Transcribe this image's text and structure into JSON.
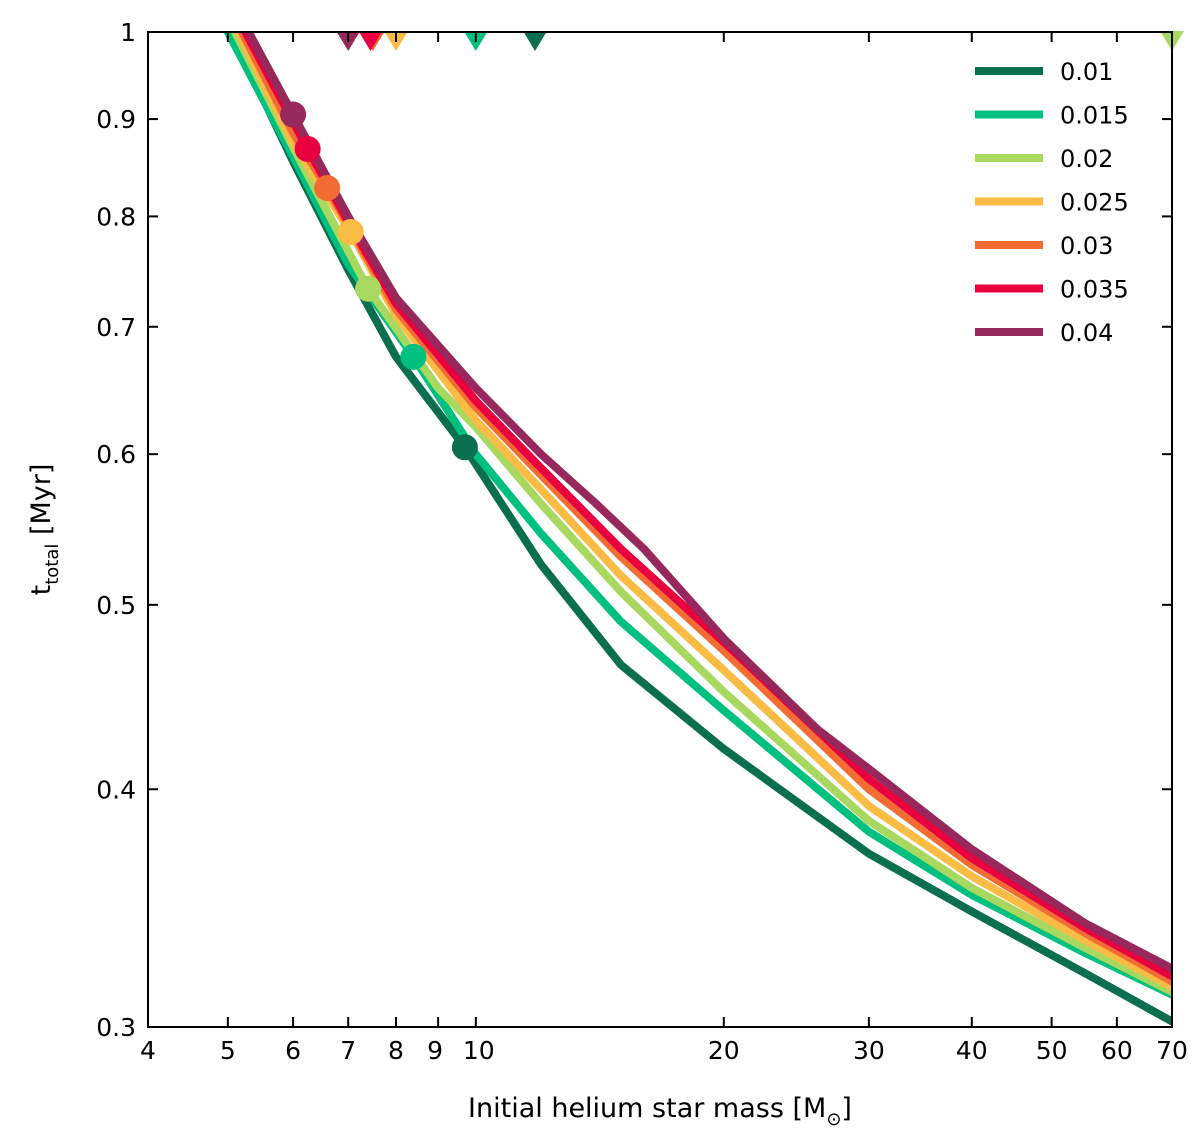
{
  "chart_data": {
    "type": "line",
    "xscale": "log",
    "yscale": "log",
    "xlim": [
      4,
      70
    ],
    "ylim": [
      0.3,
      1.0
    ],
    "xlabel": "Initial helium star mass [M",
    "xlabel_sub": "⊙",
    "xlabel_end": "]",
    "ylabel": "t",
    "ylabel_sub": "total",
    "ylabel_end": " [Myr]",
    "x_ticks": [
      {
        "value": 4,
        "label": "4"
      },
      {
        "value": 5,
        "label": "5"
      },
      {
        "value": 6,
        "label": "6"
      },
      {
        "value": 7,
        "label": "7"
      },
      {
        "value": 8,
        "label": "8"
      },
      {
        "value": 9,
        "label": "9"
      },
      {
        "value": 10,
        "label": "10"
      },
      {
        "value": 20,
        "label": "20"
      },
      {
        "value": 30,
        "label": "30"
      },
      {
        "value": 40,
        "label": "40"
      },
      {
        "value": 50,
        "label": "50"
      },
      {
        "value": 60,
        "label": "60"
      },
      {
        "value": 70,
        "label": "70"
      }
    ],
    "y_ticks": [
      {
        "value": 0.3,
        "label": "0.3"
      },
      {
        "value": 0.4,
        "label": "0.4"
      },
      {
        "value": 0.5,
        "label": "0.5"
      },
      {
        "value": 0.6,
        "label": "0.6"
      },
      {
        "value": 0.7,
        "label": "0.7"
      },
      {
        "value": 0.8,
        "label": "0.8"
      },
      {
        "value": 0.9,
        "label": "0.9"
      },
      {
        "value": 1.0,
        "label": "1"
      }
    ],
    "legend_position": "top-right",
    "series": [
      {
        "name": "0.01",
        "color": "#0b6e4f",
        "x": [
          5.05,
          6,
          7,
          8,
          9.7,
          12,
          15,
          20,
          30,
          40,
          55,
          70
        ],
        "y": [
          1.0,
          0.855,
          0.75,
          0.675,
          0.605,
          0.525,
          0.465,
          0.42,
          0.37,
          0.345,
          0.32,
          0.302
        ],
        "marker_circle": [
          9.7,
          0.605
        ],
        "marker_triangle_x": 11.8
      },
      {
        "name": "0.015",
        "color": "#00c07f",
        "x": [
          5.0,
          6,
          7,
          8.4,
          10,
          12,
          15,
          20,
          30,
          40,
          55,
          70
        ],
        "y": [
          1.0,
          0.86,
          0.755,
          0.675,
          0.6,
          0.545,
          0.49,
          0.44,
          0.38,
          0.352,
          0.328,
          0.312
        ],
        "marker_circle": [
          8.4,
          0.675
        ],
        "marker_triangle_x": 10.0
      },
      {
        "name": "0.02",
        "color": "#a8d860",
        "x": [
          5.1,
          6,
          7.4,
          9,
          10,
          12,
          15,
          20,
          30,
          40,
          55,
          70
        ],
        "y": [
          1.0,
          0.87,
          0.733,
          0.65,
          0.62,
          0.565,
          0.508,
          0.45,
          0.385,
          0.355,
          0.33,
          0.313
        ],
        "marker_circle": [
          7.4,
          0.733
        ],
        "marker_triangle_x": 70
      },
      {
        "name": "0.025",
        "color": "#fbbc45",
        "x": [
          5.15,
          6,
          7.05,
          8,
          10,
          12,
          15,
          20,
          30,
          40,
          55,
          70
        ],
        "y": [
          1.0,
          0.875,
          0.785,
          0.71,
          0.625,
          0.575,
          0.518,
          0.462,
          0.392,
          0.36,
          0.333,
          0.315
        ],
        "marker_circle": [
          7.05,
          0.785
        ],
        "marker_triangle_x": 8.0
      },
      {
        "name": "0.03",
        "color": "#f36c33",
        "x": [
          5.2,
          6,
          6.6,
          8,
          10,
          12,
          15,
          20,
          30,
          40,
          55,
          70
        ],
        "y": [
          1.0,
          0.885,
          0.828,
          0.715,
          0.635,
          0.585,
          0.53,
          0.473,
          0.4,
          0.365,
          0.336,
          0.317
        ],
        "marker_circle": [
          6.6,
          0.828
        ],
        "marker_triangle_x": 7.5
      },
      {
        "name": "0.035",
        "color": "#e8003f",
        "x": [
          5.25,
          6.25,
          7,
          8,
          10,
          12,
          15,
          20,
          30,
          40,
          55,
          70
        ],
        "y": [
          1.0,
          0.868,
          0.795,
          0.72,
          0.64,
          0.59,
          0.535,
          0.478,
          0.405,
          0.368,
          0.338,
          0.319
        ],
        "marker_circle": [
          6.25,
          0.868
        ],
        "marker_triangle_x": 7.45
      },
      {
        "name": "0.04",
        "color": "#97285b",
        "x": [
          5.3,
          6,
          7,
          8,
          10,
          12,
          14,
          16,
          20,
          26,
          30,
          40,
          55,
          70
        ],
        "y": [
          1.0,
          0.905,
          0.8,
          0.725,
          0.65,
          0.6,
          0.565,
          0.535,
          0.48,
          0.43,
          0.41,
          0.372,
          0.34,
          0.322
        ],
        "marker_circle": [
          6.0,
          0.905
        ],
        "marker_triangle_x": 7.0
      }
    ]
  }
}
